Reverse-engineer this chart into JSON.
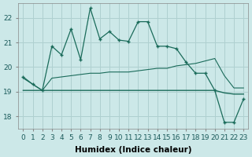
{
  "line1_x": [
    0,
    1,
    2,
    3,
    4,
    5,
    6,
    7,
    8,
    9,
    10,
    11,
    12,
    13,
    14,
    15,
    16,
    17,
    18,
    19,
    20,
    21,
    22,
    23
  ],
  "line1_y": [
    19.6,
    19.3,
    19.05,
    20.85,
    20.5,
    21.55,
    20.3,
    22.4,
    21.15,
    21.45,
    21.1,
    21.05,
    21.85,
    21.85,
    20.85,
    20.85,
    20.75,
    20.2,
    19.75,
    19.75,
    19.05,
    17.75,
    17.75,
    18.7
  ],
  "line2_x": [
    0,
    1,
    2,
    3,
    4,
    5,
    6,
    7,
    8,
    9,
    10,
    11,
    12,
    13,
    14,
    15,
    16,
    17,
    18,
    19,
    20,
    21,
    22,
    23
  ],
  "line2_y": [
    19.55,
    19.3,
    19.05,
    19.55,
    19.6,
    19.65,
    19.7,
    19.75,
    19.75,
    19.8,
    19.8,
    19.8,
    19.85,
    19.9,
    19.95,
    19.95,
    20.05,
    20.1,
    20.15,
    20.25,
    20.35,
    19.65,
    19.15,
    19.15
  ],
  "line3_x": [
    0,
    1,
    2,
    3,
    4,
    5,
    6,
    7,
    8,
    9,
    10,
    11,
    12,
    13,
    14,
    15,
    16,
    17,
    18,
    19,
    20,
    21,
    22,
    23
  ],
  "line3_y": [
    19.05,
    19.05,
    19.05,
    19.05,
    19.05,
    19.05,
    19.05,
    19.05,
    19.05,
    19.05,
    19.05,
    19.05,
    19.05,
    19.05,
    19.05,
    19.05,
    19.05,
    19.05,
    19.05,
    19.05,
    19.05,
    18.95,
    18.9,
    18.9
  ],
  "line_color": "#1a6b5a",
  "bg_color": "#cce8e8",
  "grid_color": "#afd0d0",
  "xlabel": "Humidex (Indice chaleur)",
  "ylim": [
    17.5,
    22.6
  ],
  "xlim": [
    -0.5,
    23.5
  ],
  "yticks": [
    18,
    19,
    20,
    21,
    22
  ],
  "xticks": [
    0,
    1,
    2,
    3,
    4,
    5,
    6,
    7,
    8,
    9,
    10,
    11,
    12,
    13,
    14,
    15,
    16,
    17,
    18,
    19,
    20,
    21,
    22,
    23
  ],
  "xlabel_fontsize": 7.5,
  "tick_fontsize": 6.5
}
